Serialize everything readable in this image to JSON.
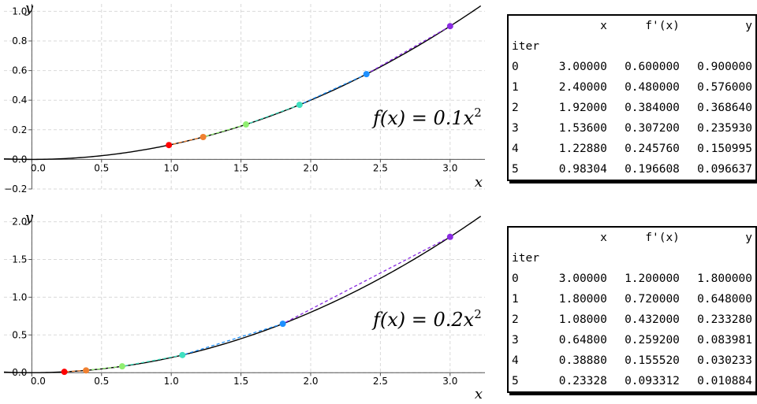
{
  "chart_data": [
    {
      "type": "line",
      "curve_coefficient": 0.1,
      "formula": {
        "lhs": "f(x) = 0.1x",
        "exp": "2"
      },
      "xlabel": "x",
      "ylabel": "y",
      "xlim": [
        -0.2,
        3.25
      ],
      "ylim": [
        -0.2,
        1.05
      ],
      "x_ticks": [
        0.0,
        0.5,
        1.0,
        1.5,
        2.0,
        2.5,
        3.0
      ],
      "x_tick_labels": [
        "0.0",
        "0.5",
        "1.0",
        "1.5",
        "2.0",
        "2.5",
        "3.0"
      ],
      "y_ticks": [
        -0.2,
        0.0,
        0.2,
        0.4,
        0.6,
        0.8,
        1.0
      ],
      "y_tick_labels": [
        "−0.2",
        "0.0",
        "0.2",
        "0.4",
        "0.6",
        "0.8",
        "1.0"
      ],
      "grid": true,
      "points": [
        {
          "x": 3.0,
          "y": 0.9,
          "color": "#8a2be2"
        },
        {
          "x": 2.4,
          "y": 0.576,
          "color": "#1e90ff"
        },
        {
          "x": 1.92,
          "y": 0.36864,
          "color": "#40e0c0"
        },
        {
          "x": 1.536,
          "y": 0.23593,
          "color": "#90ee70"
        },
        {
          "x": 1.2288,
          "y": 0.150995,
          "color": "#f08030"
        },
        {
          "x": 0.98304,
          "y": 0.096637,
          "color": "#ff0000"
        }
      ],
      "table": {
        "headers": [
          "",
          "x",
          "f'(x)",
          "y"
        ],
        "index_name": "iter",
        "rows": [
          [
            "0",
            "3.00000",
            "0.600000",
            "0.900000"
          ],
          [
            "1",
            "2.40000",
            "0.480000",
            "0.576000"
          ],
          [
            "2",
            "1.92000",
            "0.384000",
            "0.368640"
          ],
          [
            "3",
            "1.53600",
            "0.307200",
            "0.235930"
          ],
          [
            "4",
            "1.22880",
            "0.245760",
            "0.150995"
          ],
          [
            "5",
            "0.98304",
            "0.196608",
            "0.096637"
          ]
        ]
      }
    },
    {
      "type": "line",
      "curve_coefficient": 0.2,
      "formula": {
        "lhs": "f(x) = 0.2x",
        "exp": "2"
      },
      "xlabel": "x",
      "ylabel": "y",
      "xlim": [
        -0.2,
        3.25
      ],
      "ylim": [
        -0.05,
        2.1
      ],
      "x_ticks": [
        0.0,
        0.5,
        1.0,
        1.5,
        2.0,
        2.5,
        3.0
      ],
      "x_tick_labels": [
        "0.0",
        "0.5",
        "1.0",
        "1.5",
        "2.0",
        "2.5",
        "3.0"
      ],
      "y_ticks": [
        0.0,
        0.5,
        1.0,
        1.5,
        2.0
      ],
      "y_tick_labels": [
        "0.0",
        "0.5",
        "1.0",
        "1.5",
        "2.0"
      ],
      "grid": true,
      "points": [
        {
          "x": 3.0,
          "y": 1.8,
          "color": "#8a2be2"
        },
        {
          "x": 1.8,
          "y": 0.648,
          "color": "#1e90ff"
        },
        {
          "x": 1.08,
          "y": 0.23328,
          "color": "#40e0c0"
        },
        {
          "x": 0.648,
          "y": 0.083981,
          "color": "#90ee70"
        },
        {
          "x": 0.3888,
          "y": 0.030233,
          "color": "#f08030"
        },
        {
          "x": 0.23328,
          "y": 0.010884,
          "color": "#ff0000"
        }
      ],
      "table": {
        "headers": [
          "",
          "x",
          "f'(x)",
          "y"
        ],
        "index_name": "iter",
        "rows": [
          [
            "0",
            "3.00000",
            "1.200000",
            "1.800000"
          ],
          [
            "1",
            "1.80000",
            "0.720000",
            "0.648000"
          ],
          [
            "2",
            "1.08000",
            "0.432000",
            "0.233280"
          ],
          [
            "3",
            "0.64800",
            "0.259200",
            "0.083981"
          ],
          [
            "4",
            "0.38880",
            "0.155520",
            "0.030233"
          ],
          [
            "5",
            "0.23328",
            "0.093312",
            "0.010884"
          ]
        ]
      }
    }
  ]
}
